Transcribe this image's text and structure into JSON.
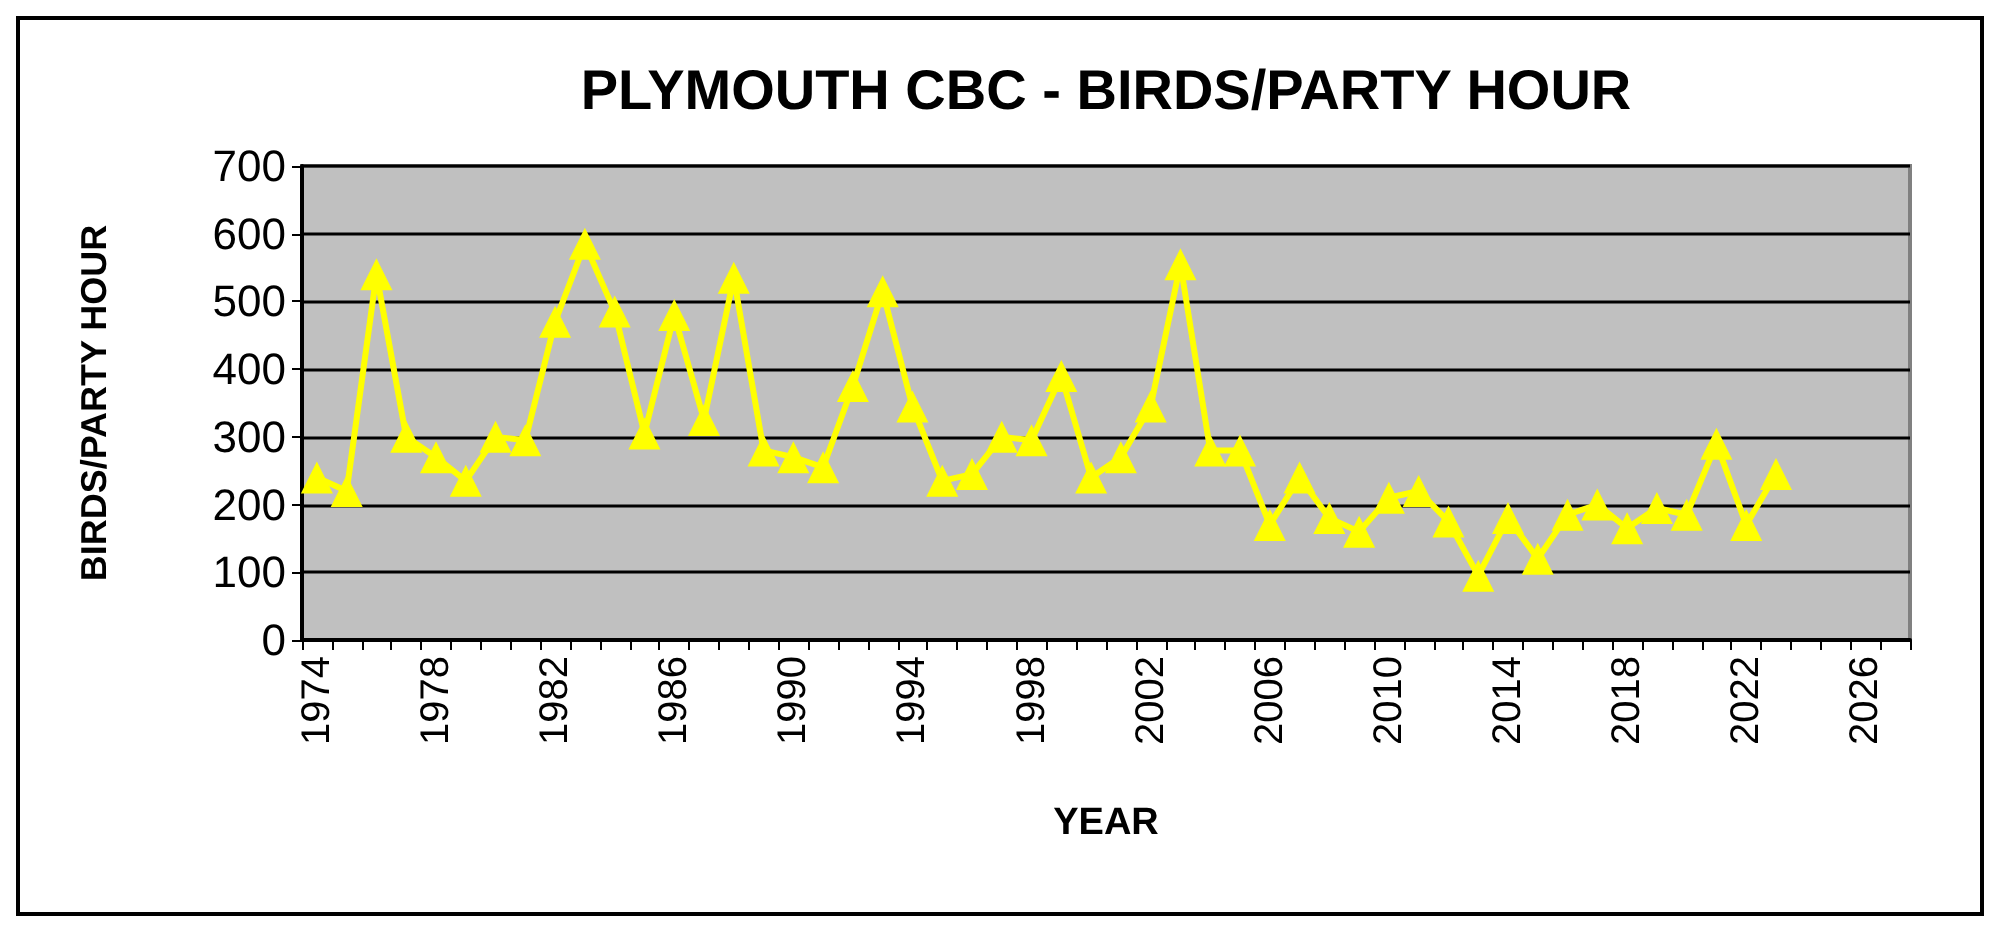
{
  "chart_data": {
    "type": "line",
    "title": "PLYMOUTH CBC - BIRDS/PARTY HOUR",
    "xlabel": "YEAR",
    "ylabel": "BIRDS/PARTY HOUR",
    "categories": [
      "1974",
      null,
      null,
      null,
      "1978",
      null,
      null,
      null,
      "1982",
      null,
      null,
      null,
      "1986",
      null,
      null,
      null,
      "1990",
      null,
      null,
      null,
      "1994",
      null,
      null,
      null,
      "1998",
      null,
      null,
      null,
      "2002",
      null,
      null,
      null,
      "2006",
      null,
      null,
      null,
      "2010",
      null,
      null,
      null,
      "2014",
      null,
      null,
      null,
      "2018",
      null,
      null,
      null,
      "2022",
      null,
      null,
      null,
      "2026",
      null
    ],
    "series": [
      {
        "color": "#ffff00",
        "values": [
          240,
          220,
          540,
          300,
          270,
          235,
          300,
          295,
          470,
          585,
          485,
          305,
          480,
          325,
          535,
          280,
          270,
          255,
          375,
          515,
          345,
          235,
          245,
          300,
          295,
          390,
          240,
          270,
          345,
          555,
          280,
          280,
          170,
          240,
          180,
          160,
          210,
          220,
          175,
          95,
          180,
          120,
          185,
          200,
          165,
          195,
          185,
          290,
          170,
          245,
          null,
          null,
          null,
          null
        ]
      }
    ],
    "ylim": [
      0,
      700
    ],
    "yticks": [
      0,
      100,
      200,
      300,
      400,
      500,
      600,
      700
    ],
    "grid": "y",
    "marker": "triangle",
    "line_style": "solid"
  }
}
